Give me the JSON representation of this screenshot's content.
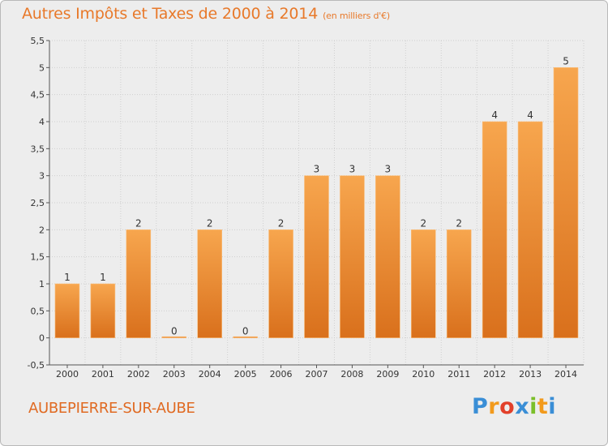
{
  "title": {
    "main": "Autres Impôts et Taxes de 2000 à 2014",
    "unit": "(en milliers d'€)"
  },
  "footer": {
    "town": "AUBEPIERRE-SUR-AUBE"
  },
  "logo": {
    "letters": [
      "P",
      "r",
      "o",
      "x",
      "i",
      "t",
      "i"
    ],
    "colors": [
      "#3a8ed6",
      "#f29a1c",
      "#e2402a",
      "#3a8ed6",
      "#7bbf2a",
      "#f29a1c",
      "#3a8ed6"
    ]
  },
  "colors": {
    "bar_top": "#f7a64e",
    "bar_bottom": "#d9701c",
    "grid": "#cfcfcf",
    "title": "#e8792a"
  },
  "chart_data": {
    "type": "bar",
    "title": "Autres Impôts et Taxes de 2000 à 2014",
    "subtitle": "(en milliers d'€)",
    "categories": [
      "2000",
      "2001",
      "2002",
      "2003",
      "2004",
      "2005",
      "2006",
      "2007",
      "2008",
      "2009",
      "2010",
      "2011",
      "2012",
      "2013",
      "2014"
    ],
    "values": [
      1,
      1,
      2,
      0,
      2,
      0,
      2,
      3,
      3,
      3,
      2,
      2,
      4,
      4,
      5
    ],
    "data_labels": [
      "1",
      "1",
      "2",
      "0",
      "2",
      "0",
      "2",
      "3",
      "3",
      "3",
      "2",
      "2",
      "4",
      "4",
      "5"
    ],
    "ylim": [
      -0.5,
      5.5
    ],
    "yticks": [
      -0.5,
      0,
      0.5,
      1,
      1.5,
      2,
      2.5,
      3,
      3.5,
      4,
      4.5,
      5,
      5.5
    ],
    "ytick_labels": [
      "-0,5",
      "0",
      "0,5",
      "1",
      "1,5",
      "2",
      "2,5",
      "3",
      "3,5",
      "4",
      "4,5",
      "5",
      "5,5"
    ],
    "grid": true,
    "xlabel": "",
    "ylabel": ""
  }
}
